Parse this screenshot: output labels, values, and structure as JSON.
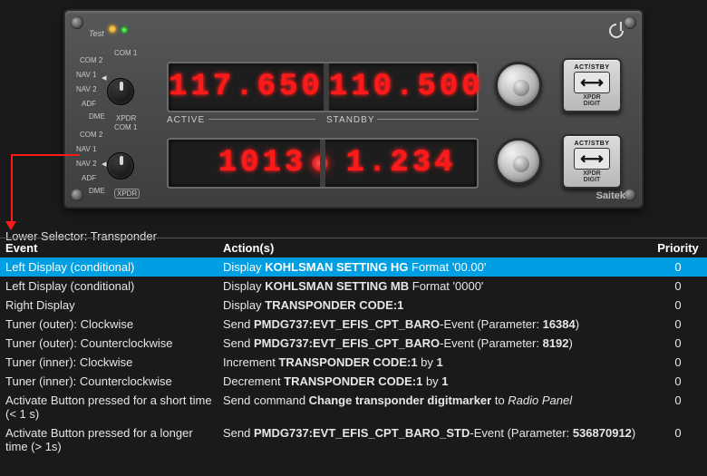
{
  "panel": {
    "test_label": "Test",
    "brand": "Saitek",
    "power_icon": "power-icon",
    "selector_labels": [
      "COM 1",
      "COM 2",
      "NAV 1",
      "NAV 2",
      "ADF",
      "DME",
      "XPDR"
    ],
    "top_row": {
      "active": "117.650",
      "standby": "110.500",
      "label_active": "ACTIVE",
      "label_standby": "STANDBY"
    },
    "bot_row": {
      "active": "1013",
      "standby": "1.234"
    },
    "button": {
      "top": "ACT/STBY",
      "swap": "⟷",
      "bottom": "XPDR\nDIGIT"
    },
    "colors": {
      "lcd_digit": "#ff1a1a",
      "lcd_bg": "#1d1d1d",
      "panel_bg_top": "#56585a",
      "panel_bg_bot": "#3c3e40",
      "arrow": "#ff1a1a",
      "row_selected": "#009fe3"
    }
  },
  "selector_caption": "Lower Selector: Transponder",
  "table": {
    "columns": [
      "Event",
      "Action(s)",
      "Priority"
    ],
    "rows": [
      {
        "event": "Left Display (conditional)",
        "action_pre": "Display ",
        "action_b": "KOHLSMAN SETTING HG",
        "action_post": " Format '00.00'",
        "priority": "0",
        "selected": true
      },
      {
        "event": "Left Display (conditional)",
        "action_pre": "Display ",
        "action_b": "KOHLSMAN SETTING MB",
        "action_post": " Format '0000'",
        "priority": "0"
      },
      {
        "event": "Right Display",
        "action_pre": "Display ",
        "action_b": "TRANSPONDER CODE:1",
        "action_post": "",
        "priority": "0"
      },
      {
        "event": "Tuner (outer): Clockwise",
        "action_pre": "Send ",
        "action_b": "PMDG737:EVT_EFIS_CPT_BARO",
        "action_post": "-Event (Parameter: ",
        "action_b2": "16384",
        "action_post2": ")",
        "priority": "0"
      },
      {
        "event": "Tuner (outer): Counterclockwise",
        "action_pre": "Send ",
        "action_b": "PMDG737:EVT_EFIS_CPT_BARO",
        "action_post": "-Event (Parameter: ",
        "action_b2": "8192",
        "action_post2": ")",
        "priority": "0"
      },
      {
        "event": "Tuner (inner): Clockwise",
        "action_pre": "Increment ",
        "action_b": "TRANSPONDER CODE:1",
        "action_post": " by ",
        "action_b2": "1",
        "action_post2": "",
        "priority": "0"
      },
      {
        "event": "Tuner (inner): Counterclockwise",
        "action_pre": "Decrement ",
        "action_b": "TRANSPONDER CODE:1",
        "action_post": " by ",
        "action_b2": "1",
        "action_post2": "",
        "priority": "0"
      },
      {
        "event": "Activate Button pressed for a short time (< 1 s)",
        "action_pre": "Send command ",
        "action_b": "Change transponder digitmarker",
        "action_post": " to ",
        "action_i": "Radio Panel",
        "priority": "0"
      },
      {
        "event": "Activate Button pressed for a longer time (> 1s)",
        "action_pre": "Send ",
        "action_b": "PMDG737:EVT_EFIS_CPT_BARO_STD",
        "action_post": "-Event (Parameter: ",
        "action_b2": "536870912",
        "action_post2": ")",
        "priority": "0"
      }
    ]
  }
}
